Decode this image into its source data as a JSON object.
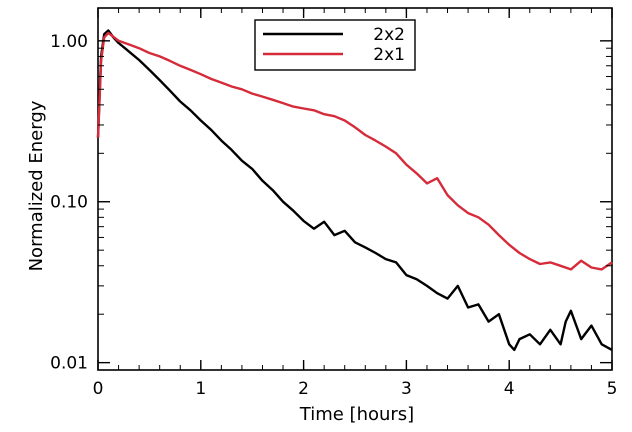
{
  "chart_data": {
    "type": "line",
    "title": "",
    "xlabel": "Time [hours]",
    "ylabel": "Normalized Energy",
    "xlim": [
      0,
      5
    ],
    "ylim": [
      0.009,
      1.6
    ],
    "yscale": "log",
    "grid": false,
    "legend_position": "top-center",
    "x_ticks": [
      0,
      1,
      2,
      3,
      4,
      5
    ],
    "x_tick_labels": [
      "0",
      "1",
      "2",
      "3",
      "4",
      "5"
    ],
    "y_ticks": [
      0.01,
      0.1,
      1.0
    ],
    "y_tick_labels": [
      "0.01",
      "0.10",
      "1.00"
    ],
    "series": [
      {
        "name": "2x2",
        "color": "#000000",
        "x": [
          0.0,
          0.03,
          0.06,
          0.1,
          0.15,
          0.2,
          0.3,
          0.4,
          0.5,
          0.6,
          0.7,
          0.8,
          0.9,
          1.0,
          1.1,
          1.2,
          1.3,
          1.4,
          1.5,
          1.6,
          1.7,
          1.8,
          1.9,
          2.0,
          2.1,
          2.2,
          2.3,
          2.4,
          2.5,
          2.6,
          2.7,
          2.8,
          2.9,
          3.0,
          3.1,
          3.2,
          3.3,
          3.4,
          3.5,
          3.6,
          3.7,
          3.8,
          3.9,
          4.0,
          4.05,
          4.1,
          4.2,
          4.3,
          4.4,
          4.5,
          4.55,
          4.6,
          4.7,
          4.8,
          4.9,
          5.0
        ],
        "values": [
          0.25,
          0.8,
          1.1,
          1.16,
          1.05,
          0.97,
          0.86,
          0.76,
          0.66,
          0.57,
          0.49,
          0.42,
          0.37,
          0.32,
          0.28,
          0.24,
          0.21,
          0.18,
          0.16,
          0.135,
          0.118,
          0.1,
          0.088,
          0.076,
          0.068,
          0.075,
          0.062,
          0.066,
          0.056,
          0.052,
          0.048,
          0.044,
          0.042,
          0.035,
          0.033,
          0.03,
          0.027,
          0.025,
          0.03,
          0.022,
          0.023,
          0.018,
          0.02,
          0.013,
          0.012,
          0.014,
          0.015,
          0.013,
          0.016,
          0.013,
          0.018,
          0.021,
          0.014,
          0.017,
          0.013,
          0.012
        ]
      },
      {
        "name": "2x1",
        "color": "#d62b3a",
        "x": [
          0.0,
          0.03,
          0.06,
          0.1,
          0.15,
          0.2,
          0.3,
          0.4,
          0.5,
          0.6,
          0.7,
          0.8,
          0.9,
          1.0,
          1.1,
          1.2,
          1.3,
          1.4,
          1.5,
          1.6,
          1.7,
          1.8,
          1.9,
          2.0,
          2.1,
          2.2,
          2.3,
          2.4,
          2.5,
          2.6,
          2.7,
          2.8,
          2.9,
          3.0,
          3.1,
          3.2,
          3.3,
          3.4,
          3.5,
          3.6,
          3.7,
          3.8,
          3.9,
          4.0,
          4.1,
          4.2,
          4.3,
          4.4,
          4.5,
          4.6,
          4.7,
          4.8,
          4.9,
          5.0
        ],
        "values": [
          0.25,
          0.75,
          1.05,
          1.12,
          1.06,
          1.0,
          0.95,
          0.9,
          0.84,
          0.8,
          0.75,
          0.7,
          0.66,
          0.62,
          0.58,
          0.55,
          0.52,
          0.5,
          0.47,
          0.45,
          0.43,
          0.41,
          0.39,
          0.38,
          0.37,
          0.35,
          0.34,
          0.32,
          0.29,
          0.26,
          0.24,
          0.22,
          0.2,
          0.17,
          0.15,
          0.13,
          0.14,
          0.11,
          0.095,
          0.085,
          0.08,
          0.072,
          0.062,
          0.054,
          0.048,
          0.044,
          0.041,
          0.042,
          0.04,
          0.038,
          0.043,
          0.039,
          0.038,
          0.042
        ]
      }
    ]
  }
}
